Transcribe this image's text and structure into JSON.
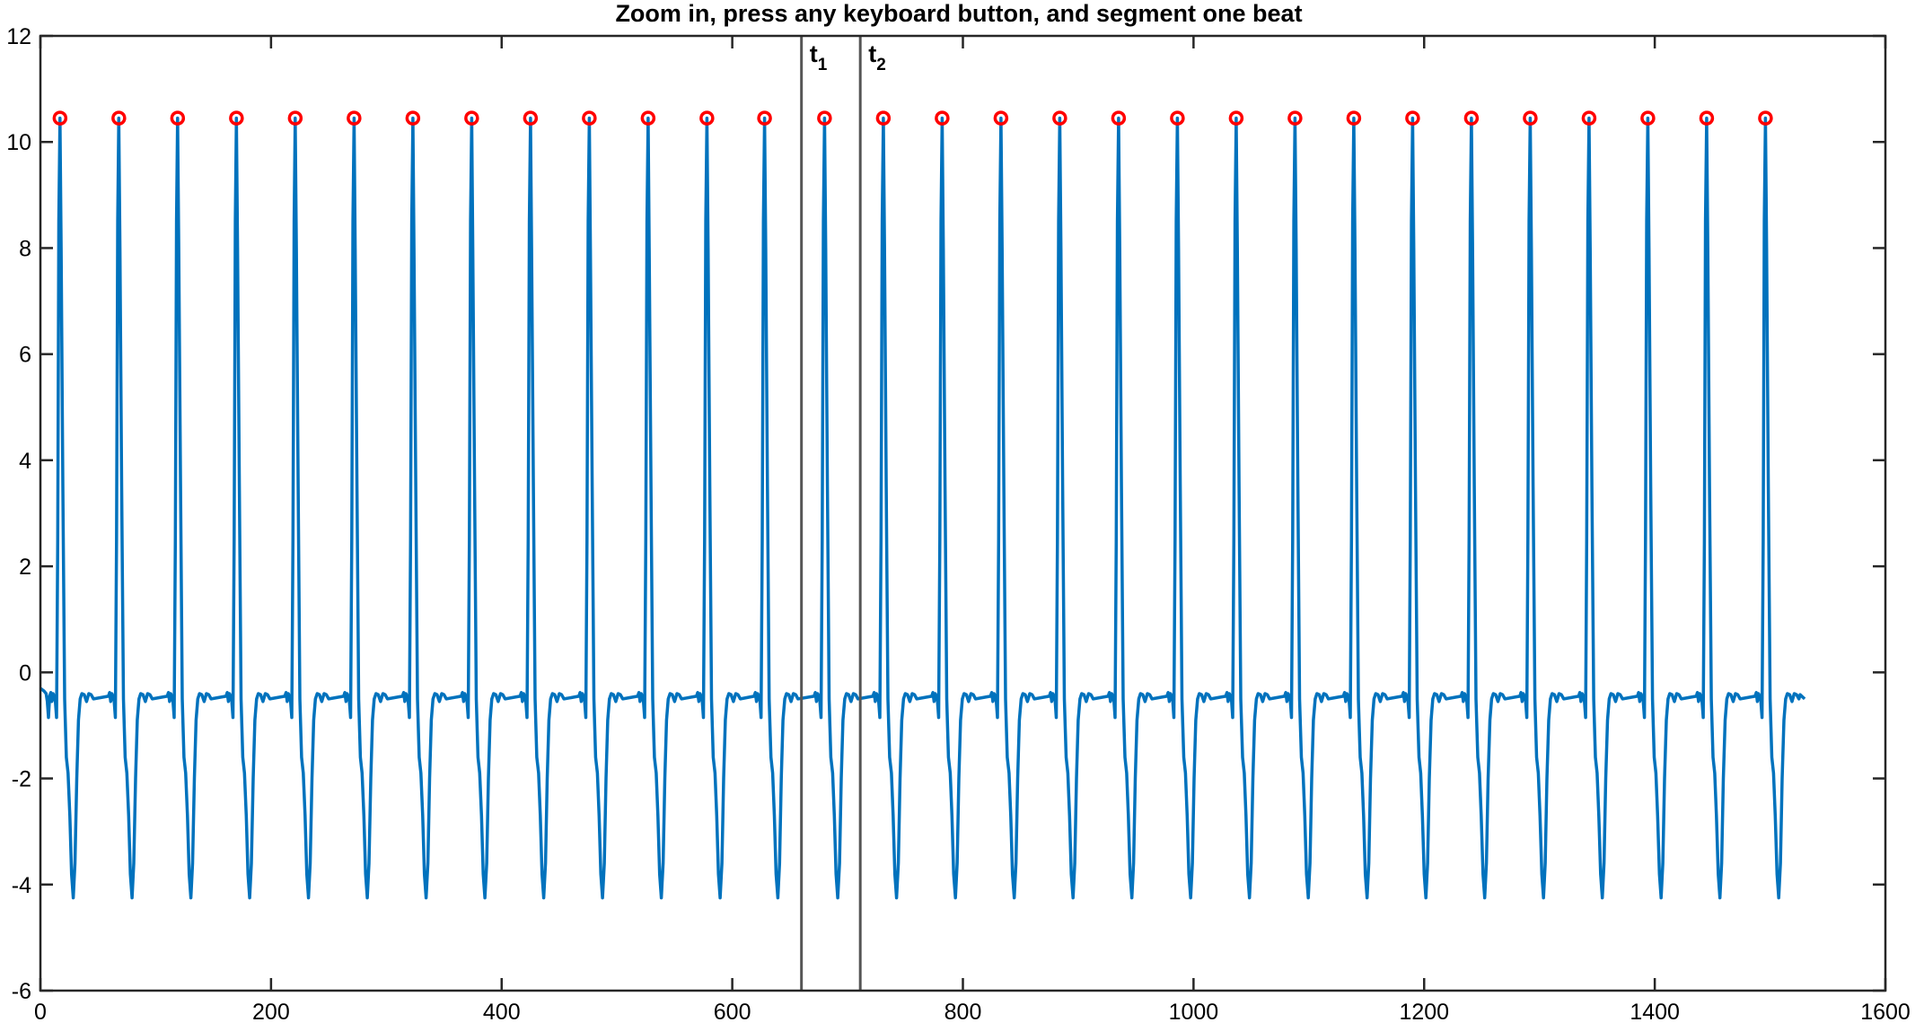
{
  "chart_data": {
    "type": "line",
    "title": "Zoom in, press any keyboard button, and segment one beat",
    "xlabel": "",
    "ylabel": "",
    "xlim": [
      0,
      1600
    ],
    "ylim": [
      -6,
      12
    ],
    "xticks": [
      0,
      200,
      400,
      600,
      800,
      1000,
      1200,
      1400,
      1600
    ],
    "xtick_labels": [
      "0",
      "200",
      "400",
      "600",
      "800",
      "1000",
      "1200",
      "1400",
      "1600"
    ],
    "yticks": [
      12,
      10,
      8,
      6,
      4,
      2,
      0,
      -2,
      -4,
      -6
    ],
    "ytick_labels": [
      "12",
      "10",
      "8",
      "6",
      "4",
      "2",
      "0",
      "-2",
      "-4",
      "-6"
    ],
    "grid": false,
    "signal_color": "#0072BD",
    "peak_marker_color": "#FF0000",
    "vline_color": "#555555",
    "series": [
      {
        "style": "line",
        "beat_period": 51.4,
        "baseline": -0.45,
        "peak_value": 10.45,
        "trough_value": -4.25,
        "x_end": 1530
      },
      {
        "style": "markers",
        "x": [
          17,
          68,
          119,
          170,
          221,
          272,
          323,
          374,
          425,
          476,
          527,
          578,
          628,
          680,
          731,
          782,
          833,
          884,
          935,
          986,
          1037,
          1088,
          1139,
          1190,
          1241,
          1292,
          1343,
          1394,
          1445,
          1496
        ],
        "y": [
          10.45,
          10.45,
          10.45,
          10.45,
          10.45,
          10.45,
          10.45,
          10.45,
          10.45,
          10.45,
          10.45,
          10.45,
          10.45,
          10.45,
          10.45,
          10.45,
          10.45,
          10.45,
          10.45,
          10.45,
          10.45,
          10.45,
          10.45,
          10.45,
          10.45,
          10.45,
          10.45,
          10.45,
          10.45,
          10.45
        ]
      }
    ],
    "vlines": [
      {
        "x": 660,
        "label": "t",
        "sub": "1"
      },
      {
        "x": 711,
        "label": "t",
        "sub": "2"
      }
    ]
  }
}
